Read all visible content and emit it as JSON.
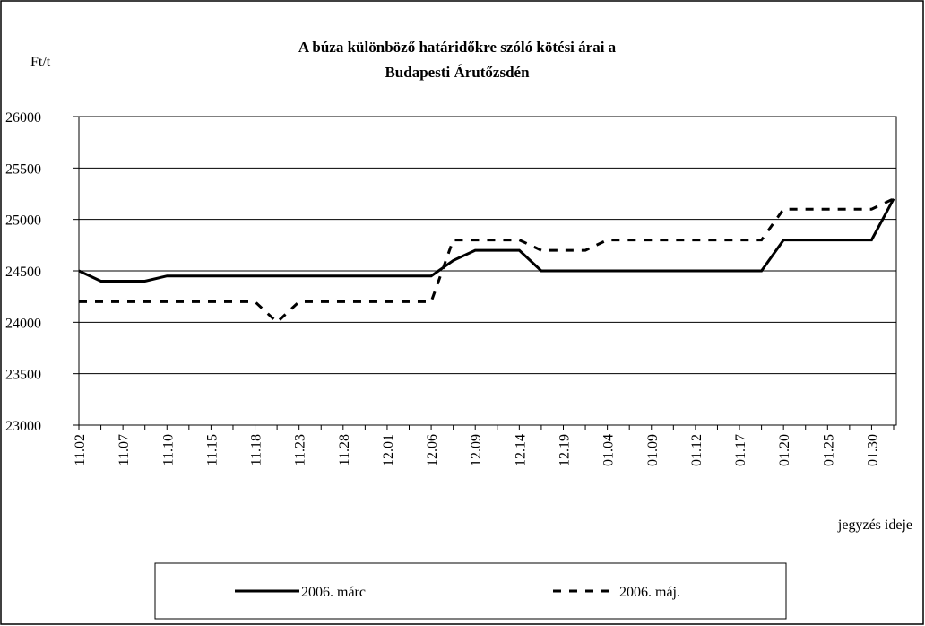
{
  "chart_data": {
    "type": "line",
    "title": "A búza különböző határidőkre szóló kötési árai a",
    "subtitle": "Budapesti Árutőzsdén",
    "y_label": "Ft/t",
    "x_label": "jegyzés ideje",
    "categories": [
      "11.02",
      null,
      "11.07",
      null,
      "11.10",
      null,
      "11.15",
      null,
      "11.18",
      null,
      "11.23",
      null,
      "11.28",
      null,
      "12.01",
      null,
      "12.06",
      null,
      "12.09",
      null,
      "12.14",
      null,
      "12.19",
      null,
      "01.04",
      null,
      "01.09",
      null,
      "01.12",
      null,
      "01.17",
      null,
      "01.20",
      null,
      "01.25",
      null,
      "01.30",
      null
    ],
    "series": [
      {
        "name": "2006. márc",
        "color": "#000000",
        "dash": false,
        "values": [
          24500,
          24400,
          24400,
          24400,
          24450,
          24450,
          24450,
          24450,
          24450,
          24450,
          24450,
          24450,
          24450,
          24450,
          24450,
          24450,
          24450,
          24600,
          24700,
          24700,
          24700,
          24500,
          24500,
          24500,
          24500,
          24500,
          24500,
          24500,
          24500,
          24500,
          24500,
          24500,
          24800,
          24800,
          24800,
          24800,
          24800,
          25200
        ]
      },
      {
        "name": "2006. máj.",
        "color": "#000000",
        "dash": true,
        "values": [
          24200,
          24200,
          24200,
          24200,
          24200,
          24200,
          24200,
          24200,
          24200,
          24000,
          24200,
          24200,
          24200,
          24200,
          24200,
          24200,
          24200,
          24800,
          24800,
          24800,
          24800,
          24700,
          24700,
          24700,
          24800,
          24800,
          24800,
          24800,
          24800,
          24800,
          24800,
          24800,
          25100,
          25100,
          25100,
          25100,
          25100,
          25200
        ]
      }
    ],
    "ylim": [
      23000,
      26000
    ],
    "yticks": [
      23000,
      23500,
      24000,
      24500,
      25000,
      25500,
      26000
    ],
    "grid": true,
    "legend": "bottom"
  }
}
